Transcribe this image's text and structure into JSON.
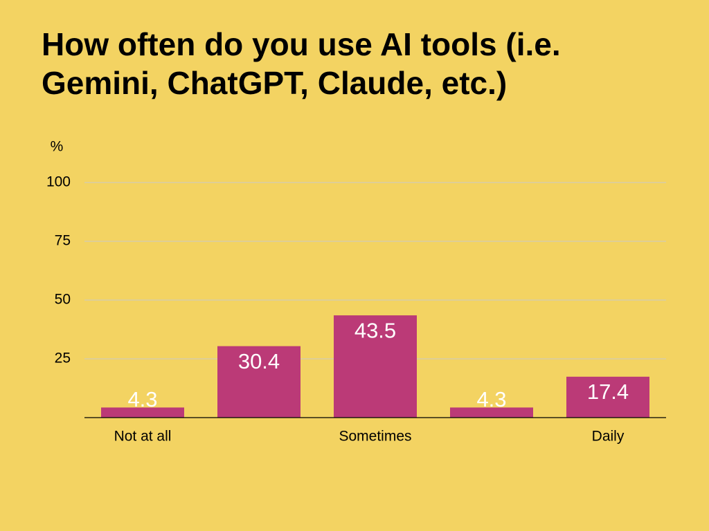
{
  "chart_data": {
    "type": "bar",
    "title": "How often do you use AI tools (i.e. Gemini, ChatGPT, Claude, etc.)",
    "y_label": "%",
    "categories": [
      "Not at all",
      null,
      "Sometimes",
      null,
      "Daily"
    ],
    "values": [
      4.3,
      30.4,
      43.5,
      4.3,
      17.4
    ],
    "color": "#bb3a77",
    "ylim": [
      0,
      100
    ],
    "yticks": [
      25,
      50,
      75,
      100
    ],
    "grid": true
  }
}
